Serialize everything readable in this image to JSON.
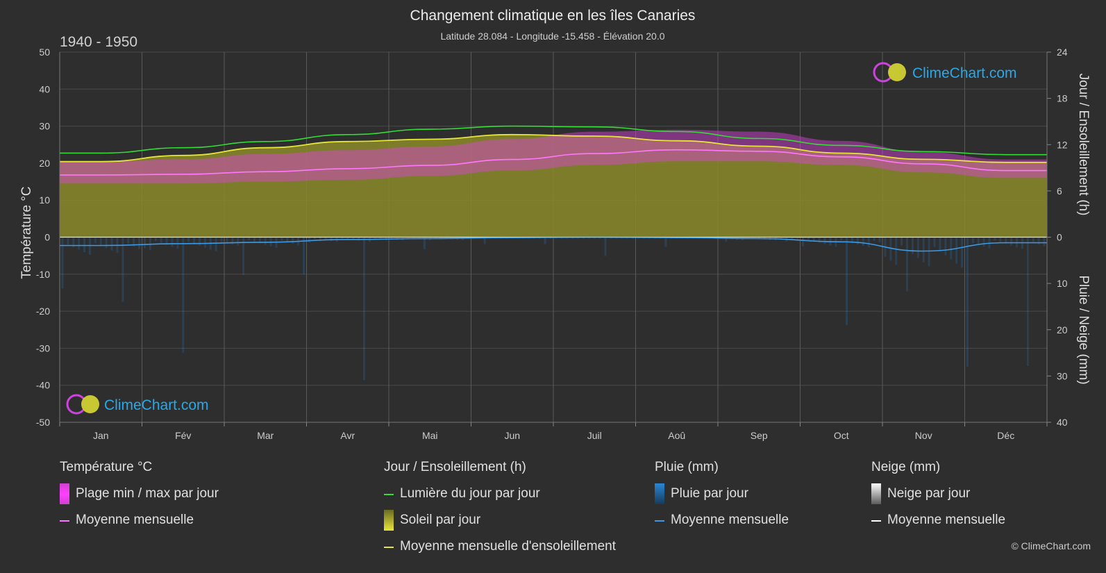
{
  "title": "Changement climatique en les îles Canaries",
  "subtitle": "Latitude 28.084 - Longitude -15.458 - Élévation 20.0",
  "period": "1940 - 1950",
  "watermark": "ClimeChart.com",
  "copyright": "© ClimeChart.com",
  "colors": {
    "background": "#2e2e2e",
    "temp_range": "#e040e0",
    "temp_mean": "#ff77ff",
    "daylight": "#33dd33",
    "sunshine_fill": "#8a8a2a",
    "sunshine_mean": "#e6e63a",
    "rain": "#2a86d6",
    "rain_mean": "#3a9ae8",
    "snow_mean": "#ffffff",
    "watermark": "#2aa8e8"
  },
  "chart_data": {
    "type": "line",
    "title": "Changement climatique en les îles Canaries",
    "x": [
      "Jan",
      "Fév",
      "Mar",
      "Avr",
      "Mai",
      "Jun",
      "Juil",
      "Aoû",
      "Sep",
      "Oct",
      "Nov",
      "Déc"
    ],
    "axes": {
      "y_left": {
        "label": "Température °C",
        "range": [
          -50,
          50
        ],
        "ticks": [
          50,
          40,
          30,
          20,
          10,
          0,
          -10,
          -20,
          -30,
          -40,
          -50
        ]
      },
      "y_right_top": {
        "label": "Jour / Ensoleillement (h)",
        "range": [
          0,
          24
        ],
        "ticks": [
          24,
          18,
          12,
          6,
          0
        ]
      },
      "y_right_bottom": {
        "label": "Pluie / Neige (mm)",
        "range": [
          0,
          40
        ],
        "ticks": [
          0,
          10,
          20,
          30,
          40
        ]
      }
    },
    "grid": true,
    "series": [
      {
        "name": "Lumière du jour par jour",
        "axis": "hours",
        "values": [
          10.9,
          11.6,
          12.4,
          13.3,
          14.0,
          14.4,
          14.3,
          13.7,
          12.8,
          11.9,
          11.1,
          10.7
        ]
      },
      {
        "name": "Moyenne mensuelle d'ensoleillement",
        "axis": "hours",
        "values": [
          9.8,
          10.6,
          11.6,
          12.4,
          12.7,
          13.3,
          13.1,
          12.5,
          11.8,
          10.9,
          10.1,
          9.7
        ]
      },
      {
        "name": "Moyenne mensuelle",
        "group": "Température °C",
        "axis": "temp",
        "values": [
          16.8,
          17.0,
          17.7,
          18.5,
          19.4,
          21.0,
          22.6,
          23.6,
          23.2,
          21.7,
          19.8,
          18.0
        ]
      },
      {
        "name": "Moyenne mensuelle",
        "group": "Pluie (mm)",
        "axis": "mm",
        "values": [
          1.8,
          1.4,
          1.1,
          0.5,
          0.3,
          0.1,
          0.0,
          0.1,
          0.3,
          1.0,
          3.0,
          1.2
        ]
      },
      {
        "name": "Moyenne mensuelle",
        "group": "Neige (mm)",
        "axis": "mm",
        "values": [
          0,
          0,
          0,
          0,
          0,
          0,
          0,
          0,
          0,
          0,
          0,
          0
        ]
      }
    ],
    "temp_range_band": {
      "name": "Plage min / max par jour",
      "max": [
        20.5,
        21.0,
        22.5,
        23.5,
        24.5,
        26.5,
        28.5,
        29.0,
        28.5,
        26.0,
        23.0,
        21.0
      ],
      "min": [
        14.5,
        14.5,
        15.0,
        15.5,
        16.5,
        18.0,
        19.5,
        20.5,
        20.5,
        19.5,
        17.5,
        16.0
      ]
    }
  },
  "legend": {
    "temperature": {
      "title": "Température °C",
      "items": [
        "Plage min / max par jour",
        "Moyenne mensuelle"
      ]
    },
    "sun": {
      "title": "Jour / Ensoleillement (h)",
      "items": [
        "Lumière du jour par jour",
        "Soleil par jour",
        "Moyenne mensuelle d'ensoleillement"
      ]
    },
    "rain": {
      "title": "Pluie (mm)",
      "items": [
        "Pluie par jour",
        "Moyenne mensuelle"
      ]
    },
    "snow": {
      "title": "Neige (mm)",
      "items": [
        "Neige par jour",
        "Moyenne mensuelle"
      ]
    }
  }
}
